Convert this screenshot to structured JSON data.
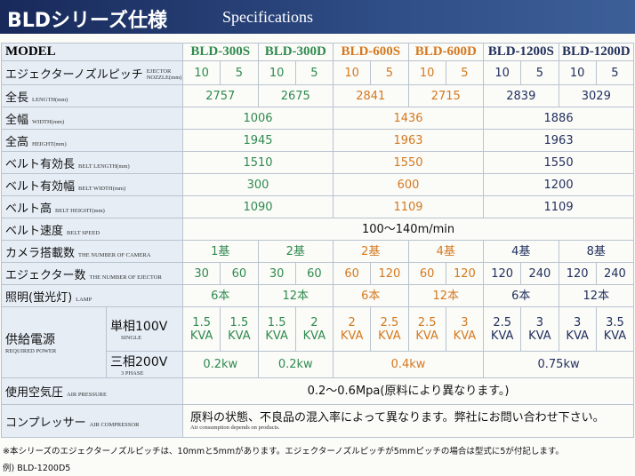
{
  "header": {
    "title": "BLDシリーズ仕様",
    "subtitle": "Specifications"
  },
  "table": {
    "model_label": "MODEL",
    "models": [
      "BLD-300S",
      "BLD-300D",
      "BLD-600S",
      "BLD-600D",
      "BLD-1200S",
      "BLD-1200D"
    ],
    "rows": [
      {
        "label": "エジェクターノズルピッチ",
        "label_en": "EJECTOR NOZZLE(mm)",
        "cells": [
          "10",
          "5",
          "10",
          "5",
          "10",
          "5",
          "10",
          "5",
          "10",
          "5",
          "10",
          "5"
        ]
      },
      {
        "label": "全長",
        "label_en": "LENGTH(mm)",
        "cells": [
          "2757",
          "2675",
          "2841",
          "2715",
          "2839",
          "3029"
        ]
      },
      {
        "label": "全幅",
        "label_en": "WIDTH(mm)",
        "cells": [
          "1006",
          "1436",
          "1886"
        ]
      },
      {
        "label": "全高",
        "label_en": "HEIGHT(mm)",
        "cells": [
          "1945",
          "1963",
          "1963"
        ]
      },
      {
        "label": "ベルト有効長",
        "label_en": "BELT LENGTH(mm)",
        "cells": [
          "1510",
          "1550",
          "1550"
        ]
      },
      {
        "label": "ベルト有効幅",
        "label_en": "BELT WIDTH(mm)",
        "cells": [
          "300",
          "600",
          "1200"
        ]
      },
      {
        "label": "ベルト高",
        "label_en": "BELT HEIGHT(mm)",
        "cells": [
          "1090",
          "1109",
          "1109"
        ]
      },
      {
        "label": "ベルト速度",
        "label_en": "BELT SPEED",
        "cells": [
          "100～140m/min"
        ]
      },
      {
        "label": "カメラ搭載数",
        "label_en": "THE NUMBER OF CAMERA",
        "cells": [
          "1基",
          "2基",
          "2基",
          "4基",
          "4基",
          "8基"
        ]
      },
      {
        "label": "エジェクター数",
        "label_en": "THE NUMBER OF EJECTOR",
        "cells": [
          "30",
          "60",
          "30",
          "60",
          "60",
          "120",
          "60",
          "120",
          "120",
          "240",
          "120",
          "240"
        ]
      },
      {
        "label": "照明(蛍光灯)",
        "label_en": "LAMP",
        "cells": [
          "6本",
          "12本",
          "6本",
          "12本",
          "6本",
          "12本"
        ]
      }
    ],
    "power": {
      "label": "供給電源",
      "label_en": "REQUIRED POWER",
      "rows": [
        {
          "label": "単相100V",
          "label_en": "SINGLE",
          "cells": [
            "1.5\nKVA",
            "1.5\nKVA",
            "1.5\nKVA",
            "2\nKVA",
            "2\nKVA",
            "2.5\nKVA",
            "2.5\nKVA",
            "3\nKVA",
            "2.5\nKVA",
            "3\nKVA",
            "3\nKVA",
            "3.5\nKVA"
          ]
        },
        {
          "label": "三相200V",
          "label_en": "3 PHASE",
          "cells": [
            "0.2kw",
            "0.2kw",
            "0.4kw",
            "0.75kw"
          ]
        }
      ]
    },
    "tail_rows": [
      {
        "label": "使用空気圧",
        "label_en": "AIR PRESSURE",
        "cells": [
          "0.2～0.6Mpa(原料により異なります。)"
        ]
      },
      {
        "label": "コンプレッサー",
        "label_en": "AIR COMPRESSOR",
        "cells": [
          "原料の状態、不良品の混入率によって異なります。弊社にお問い合わせ下さい。"
        ],
        "note": "Air consumption depends on products."
      }
    ]
  },
  "footnote": [
    "※本シリーズのエジェクターノズルピッチは、10mmと5mmがあります。エジェクターノズルピッチが5mmピッチの場合は型式に5が付記します。",
    "例) BLD-1200D5"
  ]
}
